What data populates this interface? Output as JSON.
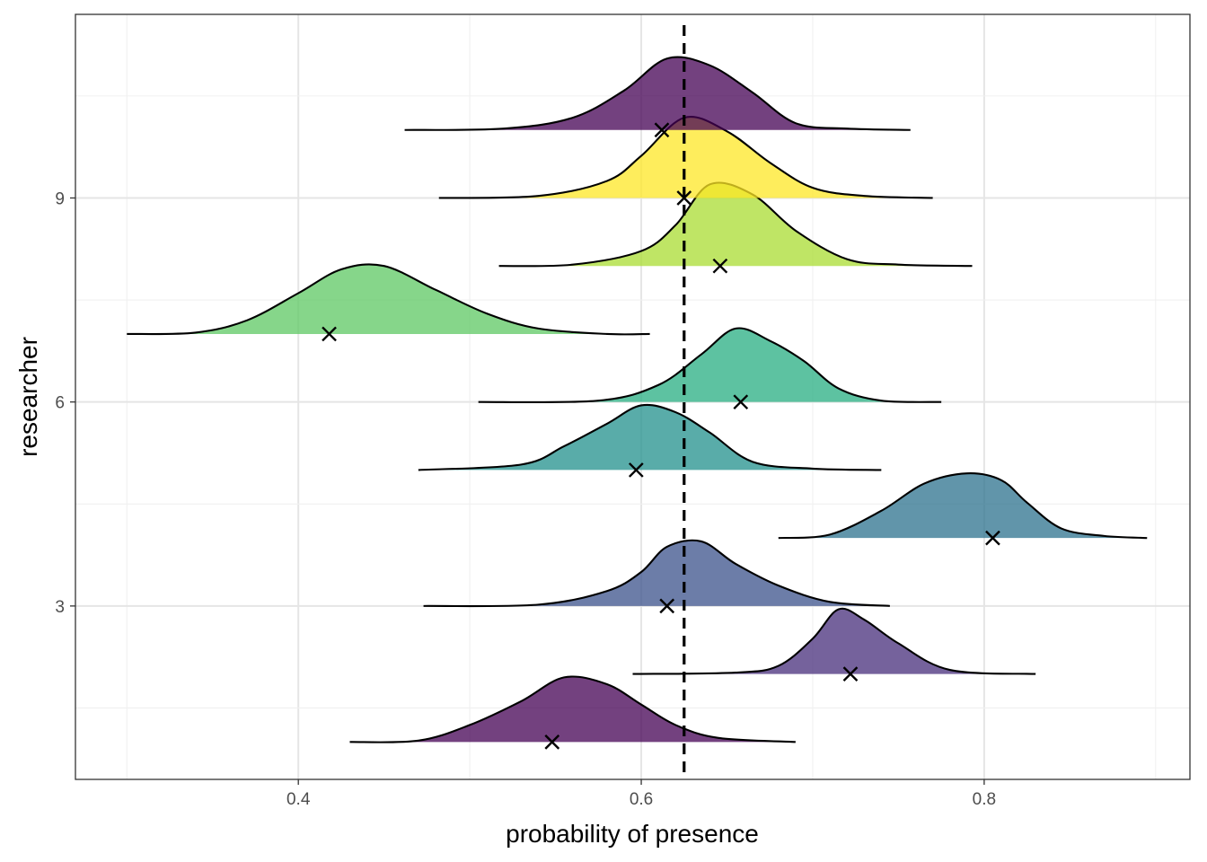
{
  "chart_data": {
    "type": "ridgeline",
    "title": "",
    "xlabel": "probability of presence",
    "ylabel": "researcher",
    "xlim": [
      0.27,
      0.92
    ],
    "ylim": [
      0.45,
      11.7
    ],
    "x_ticks": [
      0.4,
      0.6,
      0.8
    ],
    "x_tick_labels": [
      "0.4",
      "0.6",
      "0.8"
    ],
    "y_ticks": [
      3,
      6,
      9
    ],
    "y_tick_labels": [
      "3",
      "6",
      "9"
    ],
    "reference_line": {
      "x": 0.625,
      "style": "dashed"
    },
    "grid": true,
    "legend": "none",
    "series": [
      {
        "y": 1,
        "fill": "#440154",
        "density": [
          [
            0.43,
            0.0
          ],
          [
            0.47,
            0.02
          ],
          [
            0.5,
            0.25
          ],
          [
            0.53,
            0.6
          ],
          [
            0.555,
            0.95
          ],
          [
            0.58,
            0.85
          ],
          [
            0.6,
            0.55
          ],
          [
            0.62,
            0.25
          ],
          [
            0.645,
            0.06
          ],
          [
            0.69,
            0.0
          ]
        ],
        "marker": 0.548
      },
      {
        "y": 2,
        "fill": "#472D7B",
        "density": [
          [
            0.595,
            0.0
          ],
          [
            0.655,
            0.02
          ],
          [
            0.68,
            0.12
          ],
          [
            0.7,
            0.52
          ],
          [
            0.715,
            0.95
          ],
          [
            0.73,
            0.8
          ],
          [
            0.75,
            0.45
          ],
          [
            0.78,
            0.06
          ],
          [
            0.83,
            0.0
          ]
        ],
        "marker": 0.722
      },
      {
        "y": 3,
        "fill": "#3B528B",
        "density": [
          [
            0.473,
            0.0
          ],
          [
            0.54,
            0.02
          ],
          [
            0.58,
            0.22
          ],
          [
            0.6,
            0.5
          ],
          [
            0.615,
            0.87
          ],
          [
            0.635,
            0.95
          ],
          [
            0.655,
            0.62
          ],
          [
            0.68,
            0.3
          ],
          [
            0.71,
            0.06
          ],
          [
            0.745,
            0.0
          ]
        ],
        "marker": 0.615
      },
      {
        "y": 4,
        "fill": "#2C728E",
        "density": [
          [
            0.68,
            0.0
          ],
          [
            0.71,
            0.05
          ],
          [
            0.74,
            0.4
          ],
          [
            0.765,
            0.8
          ],
          [
            0.79,
            0.95
          ],
          [
            0.81,
            0.85
          ],
          [
            0.825,
            0.52
          ],
          [
            0.845,
            0.14
          ],
          [
            0.87,
            0.03
          ],
          [
            0.895,
            0.0
          ]
        ],
        "marker": 0.805
      },
      {
        "y": 5,
        "fill": "#21908C",
        "density": [
          [
            0.47,
            0.0
          ],
          [
            0.53,
            0.08
          ],
          [
            0.555,
            0.35
          ],
          [
            0.58,
            0.68
          ],
          [
            0.6,
            0.95
          ],
          [
            0.62,
            0.85
          ],
          [
            0.64,
            0.55
          ],
          [
            0.665,
            0.12
          ],
          [
            0.7,
            0.02
          ],
          [
            0.74,
            0.0
          ]
        ],
        "marker": 0.597
      },
      {
        "y": 6,
        "fill": "#27AD81",
        "density": [
          [
            0.505,
            0.0
          ],
          [
            0.575,
            0.02
          ],
          [
            0.61,
            0.25
          ],
          [
            0.635,
            0.7
          ],
          [
            0.655,
            1.08
          ],
          [
            0.675,
            0.9
          ],
          [
            0.695,
            0.6
          ],
          [
            0.715,
            0.2
          ],
          [
            0.74,
            0.02
          ],
          [
            0.775,
            0.0
          ]
        ],
        "marker": 0.658
      },
      {
        "y": 7,
        "fill": "#5DC863",
        "density": [
          [
            0.3,
            0.0
          ],
          [
            0.34,
            0.02
          ],
          [
            0.37,
            0.2
          ],
          [
            0.4,
            0.6
          ],
          [
            0.425,
            0.95
          ],
          [
            0.45,
            1.0
          ],
          [
            0.48,
            0.65
          ],
          [
            0.51,
            0.3
          ],
          [
            0.54,
            0.08
          ],
          [
            0.58,
            0.0
          ],
          [
            0.605,
            0.0
          ]
        ],
        "marker": 0.418
      },
      {
        "y": 8,
        "fill": "#AADC32",
        "density": [
          [
            0.517,
            0.0
          ],
          [
            0.56,
            0.02
          ],
          [
            0.6,
            0.22
          ],
          [
            0.62,
            0.6
          ],
          [
            0.64,
            1.2
          ],
          [
            0.665,
            1.05
          ],
          [
            0.69,
            0.52
          ],
          [
            0.72,
            0.1
          ],
          [
            0.75,
            0.02
          ],
          [
            0.793,
            0.0
          ]
        ],
        "marker": 0.646
      },
      {
        "y": 9,
        "fill": "#FDE725",
        "density": [
          [
            0.482,
            0.0
          ],
          [
            0.54,
            0.03
          ],
          [
            0.58,
            0.25
          ],
          [
            0.6,
            0.62
          ],
          [
            0.625,
            1.18
          ],
          [
            0.65,
            0.98
          ],
          [
            0.675,
            0.52
          ],
          [
            0.7,
            0.15
          ],
          [
            0.73,
            0.03
          ],
          [
            0.77,
            0.0
          ]
        ],
        "marker": 0.625
      },
      {
        "y": 10,
        "fill": "#440154",
        "density": [
          [
            0.462,
            0.0
          ],
          [
            0.52,
            0.02
          ],
          [
            0.56,
            0.18
          ],
          [
            0.59,
            0.58
          ],
          [
            0.615,
            1.05
          ],
          [
            0.64,
            0.95
          ],
          [
            0.665,
            0.55
          ],
          [
            0.69,
            0.1
          ],
          [
            0.72,
            0.02
          ],
          [
            0.757,
            0.0
          ]
        ],
        "marker": 0.612
      }
    ]
  }
}
